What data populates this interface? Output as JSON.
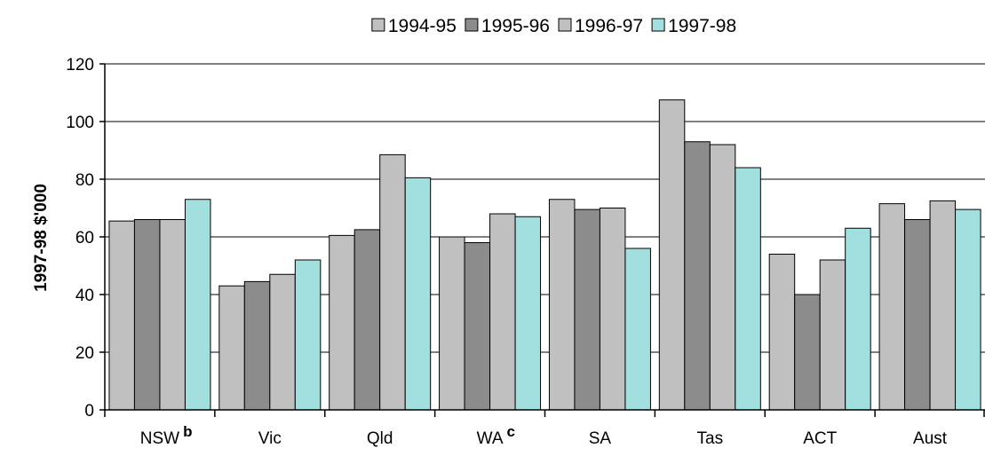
{
  "chart_data": {
    "type": "bar",
    "title": "",
    "xlabel": "",
    "ylabel": "1997-98 $'000",
    "ylim": [
      0,
      120
    ],
    "yticks": [
      0,
      20,
      40,
      60,
      80,
      100,
      120
    ],
    "grid": true,
    "legend_position": "top",
    "categories": [
      "NSW",
      "Vic",
      "Qld",
      "WA",
      "SA",
      "Tas",
      "ACT",
      "Aust"
    ],
    "category_notes": [
      "b",
      "",
      "",
      "c",
      "",
      "",
      "",
      ""
    ],
    "series": [
      {
        "name": "1994-95",
        "color": "#c0c0c0",
        "values": [
          65.5,
          43,
          60.5,
          60,
          73,
          107.5,
          54,
          71.5
        ]
      },
      {
        "name": "1995-96",
        "color": "#8c8c8c",
        "values": [
          66,
          44.5,
          62.5,
          58,
          69.5,
          93,
          40,
          66
        ]
      },
      {
        "name": "1996-97",
        "color": "#c0c0c0",
        "values": [
          66,
          47,
          88.5,
          68,
          70,
          92,
          52,
          72.5
        ]
      },
      {
        "name": "1997-98",
        "color": "#a2e0e0",
        "values": [
          73,
          52,
          80.5,
          67,
          56,
          84,
          63,
          69.5
        ]
      }
    ]
  }
}
